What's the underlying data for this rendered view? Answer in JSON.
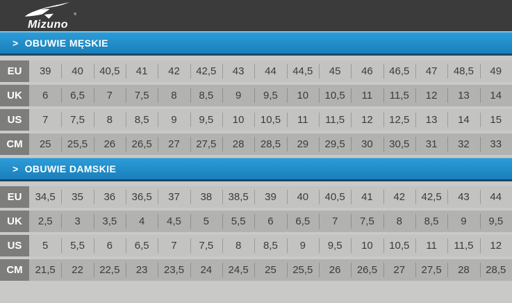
{
  "logo": {
    "brand": "Mizuno",
    "registered": "®",
    "icon": "mizuno-runbird-icon"
  },
  "colors": {
    "header_bg": "#3b3b3b",
    "band_blue_top": "#2b9cd8",
    "band_blue_bottom": "#1a7fba",
    "band_border_dark": "#1d4761",
    "label_bg": "#7d7d7b",
    "row_light": "#c3c3c1",
    "row_dark": "#b2b2b0",
    "page_bg": "#c9c9c7",
    "text_dark": "#3b3b3b"
  },
  "sections": [
    {
      "chevron": ">",
      "title": "OBUWIE MĘSKIE",
      "rows": [
        {
          "label": "EU",
          "values": [
            "39",
            "40",
            "40,5",
            "41",
            "42",
            "42,5",
            "43",
            "44",
            "44,5",
            "45",
            "46",
            "46,5",
            "47",
            "48,5",
            "49"
          ]
        },
        {
          "label": "UK",
          "values": [
            "6",
            "6,5",
            "7",
            "7,5",
            "8",
            "8,5",
            "9",
            "9,5",
            "10",
            "10,5",
            "11",
            "11,5",
            "12",
            "13",
            "14"
          ]
        },
        {
          "label": "US",
          "values": [
            "7",
            "7,5",
            "8",
            "8,5",
            "9",
            "9,5",
            "10",
            "10,5",
            "11",
            "11,5",
            "12",
            "12,5",
            "13",
            "14",
            "15"
          ]
        },
        {
          "label": "CM",
          "values": [
            "25",
            "25,5",
            "26",
            "26,5",
            "27",
            "27,5",
            "28",
            "28,5",
            "29",
            "29,5",
            "30",
            "30,5",
            "31",
            "32",
            "33"
          ]
        }
      ]
    },
    {
      "chevron": ">",
      "title": "OBUWIE DAMSKIE",
      "rows": [
        {
          "label": "EU",
          "values": [
            "34,5",
            "35",
            "36",
            "36,5",
            "37",
            "38",
            "38,5",
            "39",
            "40",
            "40,5",
            "41",
            "42",
            "42,5",
            "43",
            "44"
          ]
        },
        {
          "label": "UK",
          "values": [
            "2,5",
            "3",
            "3,5",
            "4",
            "4,5",
            "5",
            "5,5",
            "6",
            "6,5",
            "7",
            "7,5",
            "8",
            "8,5",
            "9",
            "9,5"
          ]
        },
        {
          "label": "US",
          "values": [
            "5",
            "5,5",
            "6",
            "6,5",
            "7",
            "7,5",
            "8",
            "8,5",
            "9",
            "9,5",
            "10",
            "10,5",
            "11",
            "11,5",
            "12"
          ]
        },
        {
          "label": "CM",
          "values": [
            "21,5",
            "22",
            "22,5",
            "23",
            "23,5",
            "24",
            "24,5",
            "25",
            "25,5",
            "26",
            "26,5",
            "27",
            "27,5",
            "28",
            "28,5"
          ]
        }
      ]
    }
  ]
}
